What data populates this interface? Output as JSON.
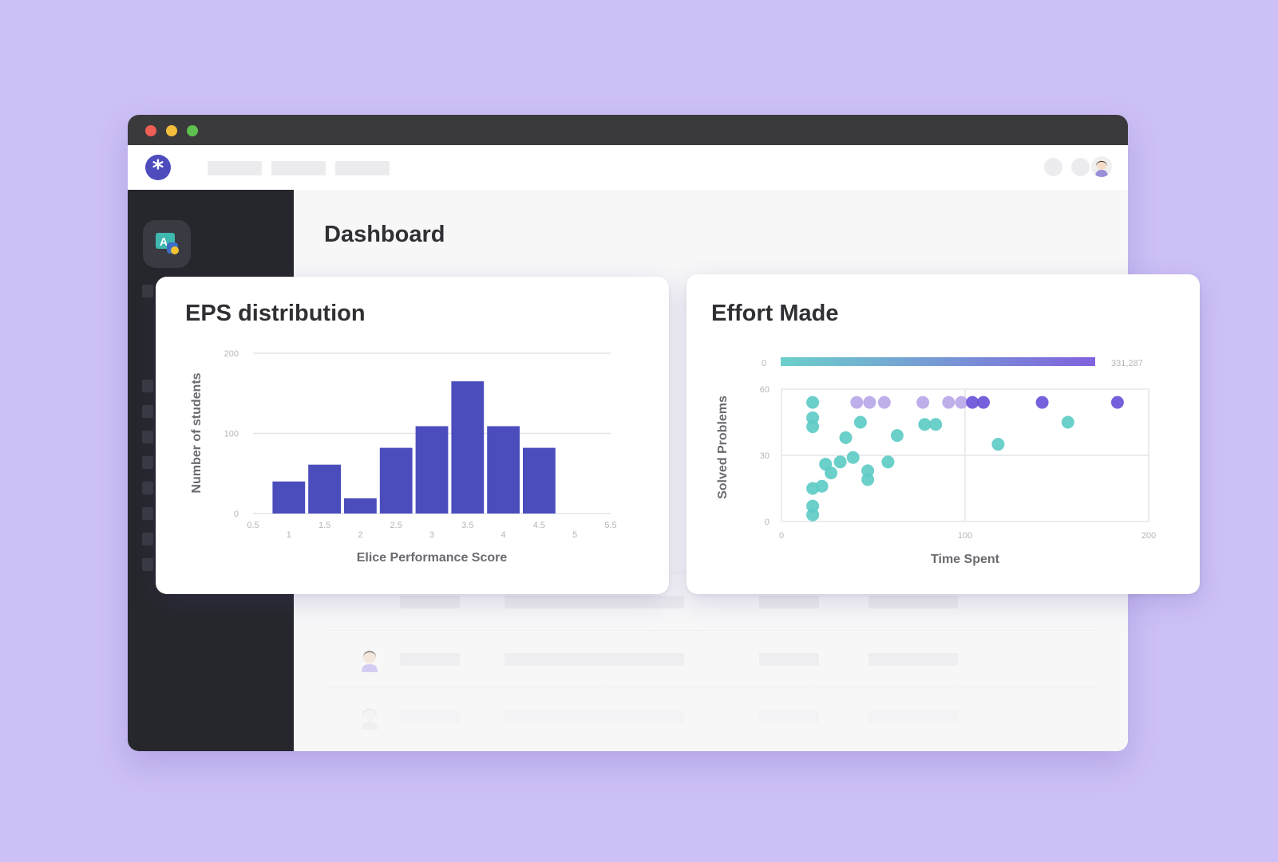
{
  "page": {
    "title": "Dashboard"
  },
  "header": {
    "logo_icon": "asterisk-logo-icon",
    "nav_items": [
      "",
      "",
      ""
    ],
    "avatar_icon": "user-avatar-icon"
  },
  "sidebar": {
    "course_icon": "python-course-icon"
  },
  "colors": {
    "background": "#cdc0f6",
    "bar": "#4b4dbd",
    "teal": "#5ecbc6",
    "purple_light": "#b9a8e8",
    "purple_dark": "#6b52d8",
    "gradient_start": "#6cd0cb",
    "gradient_end": "#8162de"
  },
  "chart_data": [
    {
      "type": "bar",
      "title": "EPS distribution",
      "xlabel": "Elice Performance Score",
      "ylabel": "Number of students",
      "x_ticks_upper": [
        "0.5",
        "1.5",
        "2.5",
        "3.5",
        "4.5",
        "5.5"
      ],
      "x_ticks_lower": [
        "1",
        "2",
        "3",
        "4",
        "5"
      ],
      "y_ticks": [
        "0",
        "100",
        "200"
      ],
      "ylim": [
        0,
        200
      ],
      "xlim": [
        0.5,
        5.5
      ],
      "grid": true,
      "bins": [
        {
          "x": 1.0,
          "value": 40
        },
        {
          "x": 1.5,
          "value": 61
        },
        {
          "x": 2.0,
          "value": 19
        },
        {
          "x": 2.5,
          "value": 82
        },
        {
          "x": 3.0,
          "value": 109
        },
        {
          "x": 3.5,
          "value": 165
        },
        {
          "x": 4.0,
          "value": 109
        },
        {
          "x": 4.5,
          "value": 82
        }
      ]
    },
    {
      "type": "scatter",
      "title": "Effort Made",
      "xlabel": "Time Spent",
      "ylabel": "Solved Problems",
      "x_ticks": [
        "0",
        "100",
        "200"
      ],
      "y_ticks": [
        "0",
        "30",
        "60"
      ],
      "xlim": [
        0,
        200
      ],
      "ylim": [
        0,
        60
      ],
      "grid": true,
      "color_scale": {
        "min_label": "0",
        "max_label": "331,287"
      },
      "points": [
        {
          "x": 17,
          "y": 54,
          "c": "teal"
        },
        {
          "x": 17,
          "y": 47,
          "c": "teal"
        },
        {
          "x": 17,
          "y": 43,
          "c": "teal"
        },
        {
          "x": 17,
          "y": 15,
          "c": "teal"
        },
        {
          "x": 17,
          "y": 7,
          "c": "teal"
        },
        {
          "x": 17,
          "y": 3,
          "c": "teal"
        },
        {
          "x": 22,
          "y": 16,
          "c": "teal"
        },
        {
          "x": 24,
          "y": 26,
          "c": "teal"
        },
        {
          "x": 27,
          "y": 22,
          "c": "teal"
        },
        {
          "x": 32,
          "y": 27,
          "c": "teal"
        },
        {
          "x": 35,
          "y": 38,
          "c": "teal"
        },
        {
          "x": 39,
          "y": 29,
          "c": "teal"
        },
        {
          "x": 43,
          "y": 45,
          "c": "teal"
        },
        {
          "x": 47,
          "y": 23,
          "c": "teal"
        },
        {
          "x": 47,
          "y": 19,
          "c": "teal"
        },
        {
          "x": 58,
          "y": 27,
          "c": "teal"
        },
        {
          "x": 63,
          "y": 39,
          "c": "teal"
        },
        {
          "x": 78,
          "y": 44,
          "c": "teal"
        },
        {
          "x": 84,
          "y": 44,
          "c": "teal"
        },
        {
          "x": 118,
          "y": 35,
          "c": "teal"
        },
        {
          "x": 156,
          "y": 45,
          "c": "teal"
        },
        {
          "x": 41,
          "y": 54,
          "c": "purple_light"
        },
        {
          "x": 48,
          "y": 54,
          "c": "purple_light"
        },
        {
          "x": 56,
          "y": 54,
          "c": "purple_light"
        },
        {
          "x": 77,
          "y": 54,
          "c": "purple_light"
        },
        {
          "x": 91,
          "y": 54,
          "c": "purple_light"
        },
        {
          "x": 98,
          "y": 54,
          "c": "purple_light"
        },
        {
          "x": 104,
          "y": 54,
          "c": "purple_dark"
        },
        {
          "x": 110,
          "y": 54,
          "c": "purple_dark"
        },
        {
          "x": 142,
          "y": 54,
          "c": "purple_dark"
        },
        {
          "x": 183,
          "y": 54,
          "c": "purple_dark"
        }
      ]
    }
  ]
}
